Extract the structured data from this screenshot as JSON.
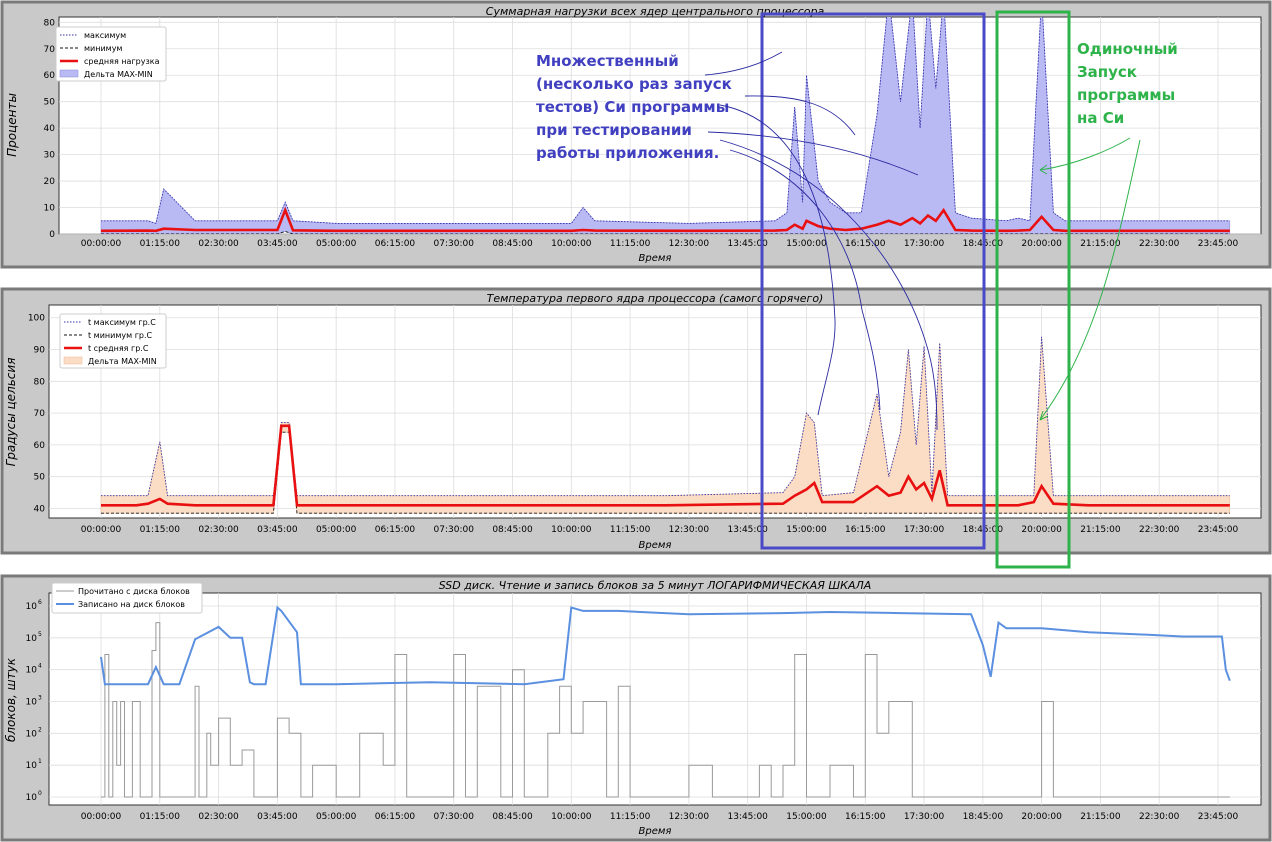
{
  "chart_data": [
    {
      "type": "area",
      "title": "Суммарная  нагрузки всех ядер центрального процессора",
      "xlabel": "Время",
      "ylabel": "Проценты",
      "ylim": [
        0,
        82
      ],
      "yticks": [
        "0",
        "10",
        "20",
        "30",
        "40",
        "50",
        "60",
        "70",
        "80"
      ],
      "xticks": [
        "00:00:00",
        "01:15:00",
        "02:30:00",
        "03:45:00",
        "05:00:00",
        "06:15:00",
        "07:30:00",
        "08:45:00",
        "10:00:00",
        "11:15:00",
        "12:30:00",
        "13:45:00",
        "15:00:00",
        "16:15:00",
        "17:30:00",
        "18:45:00",
        "20:00:00",
        "21:15:00",
        "22:30:00",
        "23:45:00"
      ],
      "legend_position": "top-left",
      "legend": [
        "максимум",
        "минимум",
        "средняя нагрузка",
        "Дельта MAX-MIN"
      ],
      "x": [
        "00:00:00",
        "01:00:00",
        "01:10:00",
        "01:20:00",
        "02:00:00",
        "03:45:00",
        "03:55:00",
        "04:05:00",
        "05:00:00",
        "07:30:00",
        "10:00:00",
        "10:15:00",
        "10:30:00",
        "12:30:00",
        "14:20:00",
        "14:35:00",
        "14:45:00",
        "14:55:00",
        "15:00:00",
        "15:15:00",
        "15:30:00",
        "15:50:00",
        "16:10:00",
        "16:30:00",
        "16:45:00",
        "17:00:00",
        "17:15:00",
        "17:25:00",
        "17:35:00",
        "17:45:00",
        "17:55:00",
        "18:10:00",
        "18:30:00",
        "19:15:00",
        "19:30:00",
        "19:45:00",
        "20:00:00",
        "20:15:00",
        "20:30:00",
        "21:00:00",
        "22:00:00",
        "23:00:00",
        "24:00:00"
      ],
      "series": [
        {
          "name": "максимум",
          "values": [
            5,
            5,
            4,
            17,
            5,
            5,
            12,
            5,
            4,
            4,
            4,
            10,
            5,
            4,
            5,
            8,
            48,
            12,
            60,
            20,
            12,
            8,
            8,
            45,
            90,
            50,
            90,
            40,
            90,
            55,
            90,
            8,
            6,
            5,
            6,
            5,
            90,
            8,
            5,
            5,
            5,
            5,
            5
          ]
        },
        {
          "name": "минимум",
          "values": [
            0,
            0,
            0,
            0,
            0,
            0,
            1,
            0,
            0,
            0,
            0,
            0,
            0,
            0,
            0,
            0,
            0,
            0,
            0,
            0,
            0,
            0,
            0,
            0,
            0,
            0,
            0,
            0,
            0,
            0,
            0,
            0,
            0,
            0,
            0,
            0,
            0,
            0,
            0,
            0,
            0,
            0,
            0
          ]
        },
        {
          "name": "средняя нагрузка",
          "values": [
            1.2,
            1.3,
            1.2,
            2,
            1.5,
            1.5,
            9,
            1.4,
            1.2,
            1.2,
            1.2,
            1.5,
            1.3,
            1.2,
            1.3,
            1.5,
            3.5,
            2,
            5,
            3,
            2,
            1.5,
            2,
            3.5,
            5,
            3.5,
            6,
            4,
            7,
            5,
            9,
            1.5,
            1.3,
            1.2,
            1.3,
            1.5,
            6.5,
            1.5,
            1.2,
            1.2,
            1.2,
            1.2,
            1.2
          ]
        }
      ]
    },
    {
      "type": "area",
      "title": "Температура первого ядра процессора (самого горячего)",
      "xlabel": "Время",
      "ylabel": "Градусы  цельсия",
      "ylim": [
        37,
        104
      ],
      "yticks": [
        "40",
        "50",
        "60",
        "70",
        "80",
        "90",
        "100"
      ],
      "xticks": [
        "00:00:00",
        "01:15:00",
        "02:30:00",
        "03:45:00",
        "05:00:00",
        "06:15:00",
        "07:30:00",
        "08:45:00",
        "10:00:00",
        "11:15:00",
        "12:30:00",
        "13:45:00",
        "15:00:00",
        "16:15:00",
        "17:30:00",
        "18:45:00",
        "20:00:00",
        "21:15:00",
        "22:30:00",
        "23:45:00"
      ],
      "legend_position": "top-left",
      "legend": [
        "t максимум гр.С",
        "t минимум гр.С",
        "t средняя гр.С",
        "Дельта MAX-MIN"
      ],
      "x": [
        "00:00:00",
        "00:45:00",
        "01:00:00",
        "01:15:00",
        "01:25:00",
        "02:00:00",
        "03:40:00",
        "03:50:00",
        "04:00:00",
        "04:10:00",
        "06:00:00",
        "09:00:00",
        "12:00:00",
        "14:30:00",
        "14:45:00",
        "15:00:00",
        "15:10:00",
        "15:20:00",
        "16:00:00",
        "16:30:00",
        "16:45:00",
        "17:00:00",
        "17:10:00",
        "17:20:00",
        "17:30:00",
        "17:40:00",
        "17:50:00",
        "18:00:00",
        "18:30:00",
        "19:30:00",
        "19:50:00",
        "20:00:00",
        "20:15:00",
        "21:00:00",
        "22:30:00",
        "24:00:00"
      ],
      "series": [
        {
          "name": "t максимум гр.С",
          "values": [
            44,
            44,
            44,
            61,
            44,
            44,
            44,
            67,
            67,
            44,
            44,
            44,
            44,
            45,
            50,
            70,
            67,
            44,
            45,
            76,
            50,
            64,
            90,
            60,
            91,
            45,
            92,
            44,
            44,
            44,
            44,
            94,
            44,
            44,
            44,
            44
          ]
        },
        {
          "name": "t минимум гр.С",
          "values": [
            38.5,
            38.5,
            38.5,
            38.5,
            38.5,
            38.5,
            38.5,
            64,
            64,
            38.5,
            38.5,
            38.5,
            38.5,
            38.5,
            38.5,
            38.5,
            38.5,
            38.5,
            38.5,
            38.5,
            38.5,
            38.5,
            38.5,
            38.5,
            38.5,
            38.5,
            38.5,
            38.5,
            38.5,
            38.5,
            38.5,
            38.5,
            38.5,
            38.5,
            38.5,
            38.5
          ]
        },
        {
          "name": "t средняя гр.С",
          "values": [
            41,
            41,
            41.5,
            43,
            41.5,
            41,
            41,
            66,
            66,
            41,
            41,
            41,
            41,
            41.5,
            44,
            46,
            48,
            42,
            42,
            47,
            44,
            45,
            50,
            46,
            48,
            43,
            52,
            41,
            41,
            41,
            42,
            47,
            41.5,
            41,
            41,
            41
          ]
        }
      ]
    },
    {
      "type": "line",
      "title": "SSD диск.  Чтение и запись блоков за 5 минут  ЛОГАРИФМИЧЕСКАЯ ШКАЛА",
      "xlabel": "Время",
      "ylabel": "блоков,  штук",
      "yscale": "log",
      "ylim": [
        1,
        1000000
      ],
      "yticks": [
        "10^0",
        "10^1",
        "10^2",
        "10^3",
        "10^4",
        "10^5",
        "10^6"
      ],
      "xticks": [
        "00:00:00",
        "01:15:00",
        "02:30:00",
        "03:45:00",
        "05:00:00",
        "06:15:00",
        "07:30:00",
        "08:45:00",
        "10:00:00",
        "11:15:00",
        "12:30:00",
        "13:45:00",
        "15:00:00",
        "16:15:00",
        "17:30:00",
        "18:45:00",
        "20:00:00",
        "21:15:00",
        "22:30:00",
        "23:45:00"
      ],
      "legend_position": "top-left",
      "legend": [
        "Прочитано с диска блоков",
        "Записано на диск блоков"
      ],
      "series": [
        {
          "name": "Записано на диск блоков",
          "x": [
            "00:00:00",
            "00:05:00",
            "00:30:00",
            "01:00:00",
            "01:10:00",
            "01:20:00",
            "01:40:00",
            "02:00:00",
            "02:30:00",
            "02:45:00",
            "03:00:00",
            "03:10:00",
            "03:15:00",
            "03:30:00",
            "03:45:00",
            "03:50:00",
            "04:10:00",
            "04:15:00",
            "05:00:00",
            "07:00:00",
            "09:00:00",
            "09:50:00",
            "10:00:00",
            "10:15:00",
            "11:00:00",
            "12:30:00",
            "14:30:00",
            "15:30:00",
            "17:00:00",
            "18:30:00",
            "18:45:00",
            "18:55:00",
            "19:05:00",
            "19:15:00",
            "20:00:00",
            "21:00:00",
            "22:00:00",
            "23:00:00",
            "23:50:00",
            "23:55:00",
            "24:00:00"
          ],
          "values": [
            25000,
            3500,
            3500,
            3500,
            12000,
            3500,
            3500,
            90000,
            220000,
            100000,
            100000,
            4000,
            3500,
            3500,
            900000,
            700000,
            150000,
            3500,
            3500,
            4000,
            3500,
            5000,
            900000,
            700000,
            700000,
            550000,
            600000,
            650000,
            600000,
            550000,
            60000,
            6000,
            300000,
            200000,
            200000,
            150000,
            130000,
            110000,
            110000,
            10000,
            4500
          ]
        },
        {
          "name": "Прочитано с диска блоков",
          "x": [
            "00:00:00",
            "00:05:00",
            "00:10:00",
            "00:15:00",
            "00:20:00",
            "00:25:00",
            "00:30:00",
            "00:40:00",
            "00:50:00",
            "01:00:00",
            "01:05:00",
            "01:10:00",
            "01:15:00",
            "01:20:00",
            "01:30:00",
            "02:00:00",
            "02:05:00",
            "02:15:00",
            "02:20:00",
            "02:30:00",
            "02:45:00",
            "03:00:00",
            "03:15:00",
            "03:30:00",
            "03:45:00",
            "04:00:00",
            "04:15:00",
            "04:30:00",
            "05:00:00",
            "05:30:00",
            "06:00:00",
            "06:15:00",
            "06:30:00",
            "07:00:00",
            "07:30:00",
            "07:45:00",
            "08:00:00",
            "08:30:00",
            "08:45:00",
            "09:00:00",
            "09:30:00",
            "09:45:00",
            "10:00:00",
            "10:15:00",
            "10:45:00",
            "11:00:00",
            "11:15:00",
            "12:00:00",
            "12:30:00",
            "13:00:00",
            "13:30:00",
            "14:00:00",
            "14:15:00",
            "14:30:00",
            "14:45:00",
            "15:00:00",
            "15:30:00",
            "16:00:00",
            "16:15:00",
            "16:30:00",
            "16:45:00",
            "17:00:00",
            "17:15:00",
            "17:30:00",
            "18:00:00",
            "18:30:00",
            "19:00:00",
            "19:30:00",
            "20:00:00",
            "20:15:00",
            "20:30:00",
            "21:00:00",
            "22:00:00",
            "23:00:00",
            "24:00:00"
          ],
          "values": [
            1,
            30000,
            1,
            1000,
            10,
            1000,
            1,
            1000,
            1,
            1,
            40000,
            300000,
            1,
            1,
            1,
            3000,
            1,
            100,
            10,
            300,
            10,
            30,
            1,
            1,
            300,
            100,
            1,
            10,
            1,
            100,
            10,
            30000,
            1,
            1,
            30000,
            1,
            3000,
            1,
            10000,
            1,
            100,
            3000,
            100,
            1000,
            1,
            3000,
            1,
            1,
            10,
            1,
            1,
            10,
            1,
            10,
            30000,
            1,
            10,
            1,
            30000,
            100,
            1000,
            1000,
            1,
            1,
            1,
            1,
            1,
            1,
            1000,
            1,
            1,
            1,
            1,
            1,
            1
          ]
        }
      ]
    }
  ],
  "annotations": {
    "multi_lines": [
      "Множественный",
      "(несколько раз запуск",
      "тестов)  Си программы",
      "при тестировании",
      "работы приложения."
    ],
    "single_lines": [
      "Одиночный",
      "Запуск",
      "программы",
      "на Си"
    ],
    "colors": {
      "multi": "#4040c0",
      "single": "#2db34a"
    }
  }
}
